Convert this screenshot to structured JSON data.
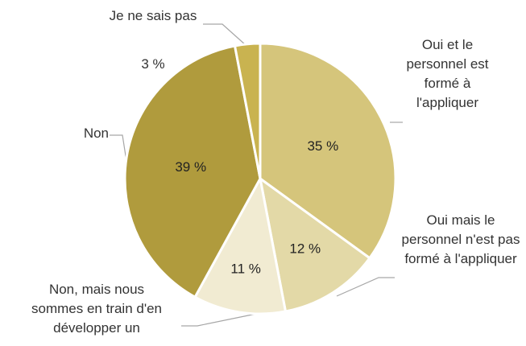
{
  "chart_data": {
    "type": "pie",
    "categories": [
      "Oui et le personnel est formé à l'appliquer",
      "Oui mais le personnel n'est pas formé à l'appliquer",
      "Non, mais nous sommes en train d'en développer un",
      "Non",
      "Je ne sais pas"
    ],
    "values": [
      35,
      12,
      11,
      39,
      3
    ],
    "value_labels": [
      "35 %",
      "12 %",
      "11 %",
      "39 %",
      "3 %"
    ],
    "colors": [
      "#d5c57b",
      "#e3d9a7",
      "#f1ebd2",
      "#b09b3d",
      "#c9b350"
    ]
  }
}
